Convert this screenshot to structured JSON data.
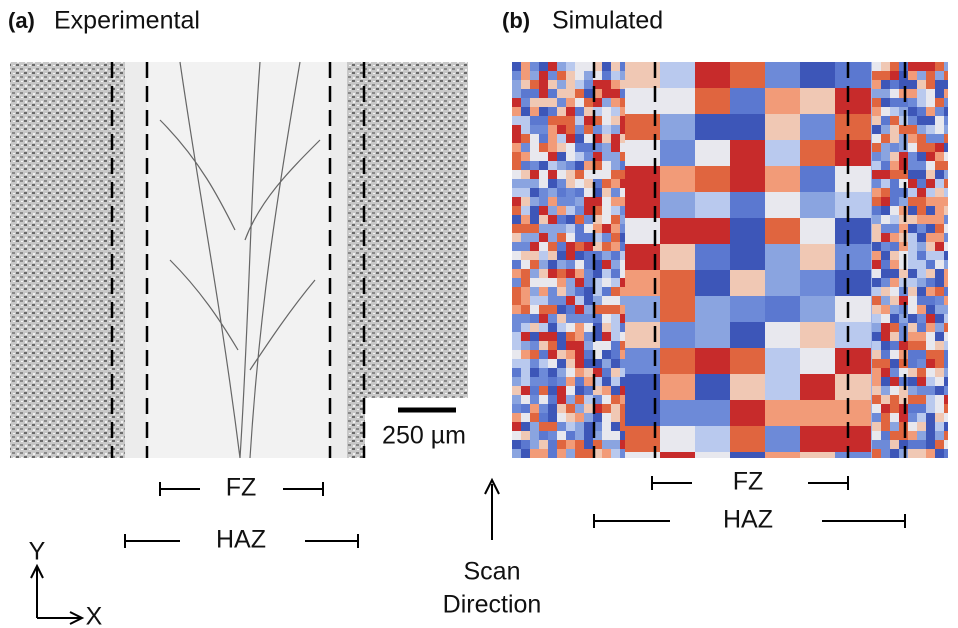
{
  "panels": [
    {
      "label": "(a)",
      "title": "Experimental",
      "scale_bar": "250 µm",
      "zones": {
        "fz": "FZ",
        "haz": "HAZ"
      }
    },
    {
      "label": "(b)",
      "title": "Simulated",
      "zones": {
        "fz": "FZ",
        "haz": "HAZ"
      }
    }
  ],
  "scan_direction": {
    "line1": "Scan",
    "line2": "Direction"
  },
  "axes": {
    "y": "Y",
    "x": "X"
  }
}
